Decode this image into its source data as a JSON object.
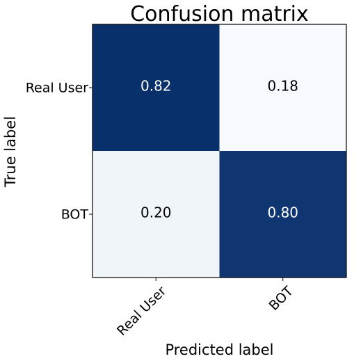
{
  "chart_data": {
    "type": "heatmap",
    "title": "Confusion matrix",
    "xlabel": "Predicted label",
    "ylabel": "True label",
    "row_labels": [
      "Real User",
      "BOT"
    ],
    "col_labels": [
      "Real User",
      "BOT"
    ],
    "values": [
      [
        0.82,
        0.18
      ],
      [
        0.2,
        0.8
      ]
    ],
    "value_labels": [
      [
        "0.82",
        "0.18"
      ],
      [
        "0.20",
        "0.80"
      ]
    ],
    "colormap": "Blues",
    "colors": {
      "high": "#08306b",
      "low": "#f7fbff",
      "text_on_dark": "#ffffff",
      "text_on_light": "#000000"
    }
  }
}
